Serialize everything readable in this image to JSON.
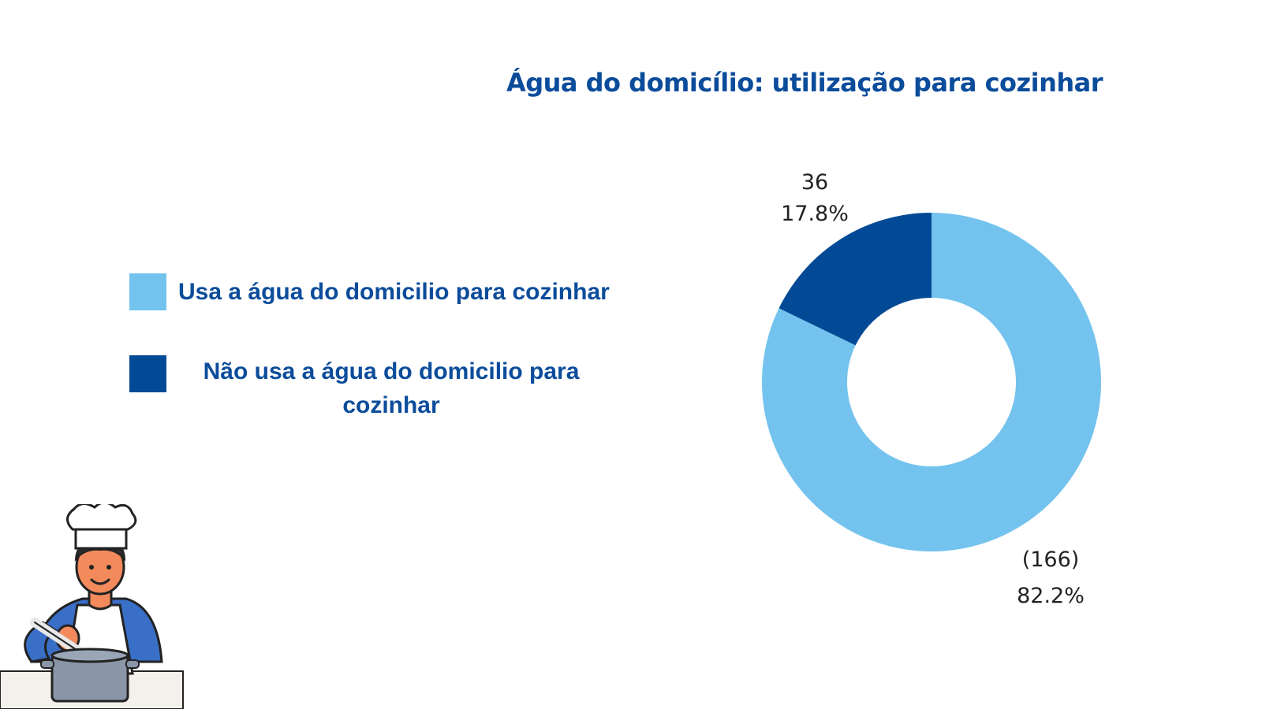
{
  "chart_data": {
    "type": "pie",
    "title": "Água do domicílio: utilização para cozinhar",
    "series": [
      {
        "name": "Usa a água do domicilio para cozinhar",
        "value": 166,
        "value_label": "(166)",
        "percent_label": "82.2%",
        "color": "#74c3ee"
      },
      {
        "name": "Não usa a água do domicilio para cozinhar",
        "value": 36,
        "value_label": "36",
        "percent_label": "17.8%",
        "color": "#034a96"
      }
    ],
    "donut": true,
    "legend_position": "left"
  },
  "illustration": {
    "icon": "chef-cooking-icon"
  }
}
